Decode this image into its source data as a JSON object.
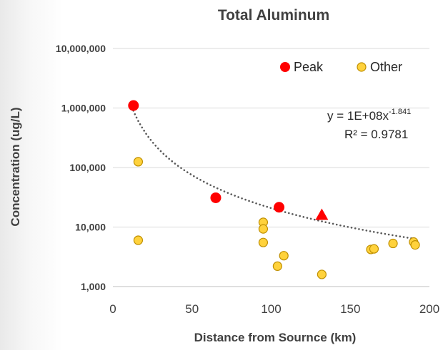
{
  "chart_data": {
    "type": "scatter",
    "title": "Total Aluminum",
    "xlabel": "Distance from Sournce (km)",
    "ylabel": "Concentration (ug/L)",
    "xlim": [
      0,
      200
    ],
    "ylim": [
      1000,
      10000000
    ],
    "yscale": "log",
    "x_ticks": [
      0,
      50,
      100,
      150,
      200
    ],
    "x_tick_labels": [
      "0",
      "50",
      "100",
      "150",
      "200"
    ],
    "y_ticks": [
      1000,
      10000,
      100000,
      1000000,
      10000000
    ],
    "y_tick_labels": [
      "1,000",
      "10,000",
      "100,000",
      "1,000,000",
      "10,000,000"
    ],
    "grid": "horizontal",
    "legend_position": "top-right",
    "colors": {
      "peak": "#ff0000",
      "other": "#ffd23c",
      "other_edge": "#bf8f00",
      "trend": "#595959"
    },
    "series": [
      {
        "name": "Peak",
        "marker": "circle",
        "points": [
          {
            "x": 13,
            "y": 1100000
          },
          {
            "x": 65,
            "y": 31000
          },
          {
            "x": 105,
            "y": 21500
          }
        ]
      },
      {
        "name": "Other",
        "marker": "circle",
        "points": [
          {
            "x": 16,
            "y": 125000
          },
          {
            "x": 16,
            "y": 6000
          },
          {
            "x": 95,
            "y": 12000
          },
          {
            "x": 95,
            "y": 9300
          },
          {
            "x": 95,
            "y": 5500
          },
          {
            "x": 104,
            "y": 2200
          },
          {
            "x": 108,
            "y": 3300
          },
          {
            "x": 132,
            "y": 1600
          },
          {
            "x": 163,
            "y": 4200
          },
          {
            "x": 165,
            "y": 4300
          },
          {
            "x": 177,
            "y": 5300
          },
          {
            "x": 190,
            "y": 5600
          },
          {
            "x": 191,
            "y": 5000
          }
        ]
      },
      {
        "name": "",
        "marker": "triangle",
        "points": [
          {
            "x": 132,
            "y": 16000
          }
        ]
      }
    ],
    "trendline": {
      "type": "power",
      "coefficient": 100000000,
      "exponent": -1.841,
      "x_range": [
        12,
        190
      ],
      "equation_base": "y = 1E+08x",
      "equation_exponent": "-1.841",
      "r_squared_label": "R² = 0.9781"
    }
  }
}
